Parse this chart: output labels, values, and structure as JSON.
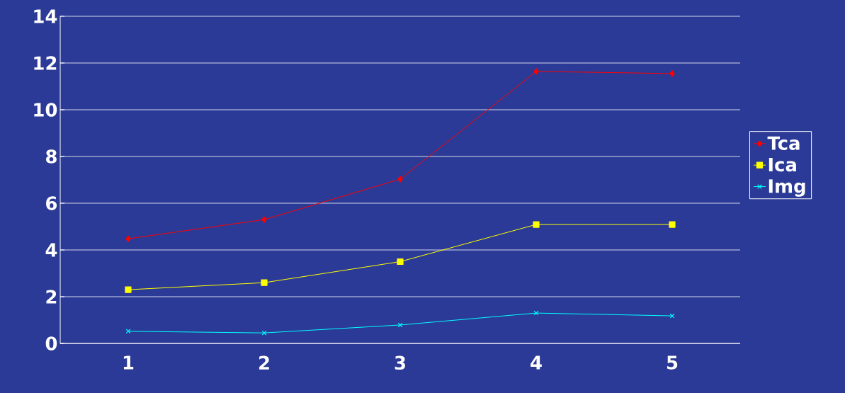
{
  "chart_data": {
    "type": "line",
    "categories": [
      "1",
      "2",
      "3",
      "4",
      "5"
    ],
    "series": [
      {
        "name": "Tca",
        "color": "#ff0000",
        "marker": "diamond",
        "values": [
          4.48,
          5.3,
          7.03,
          11.64,
          11.55
        ]
      },
      {
        "name": "Ica",
        "color": "#ffff00",
        "marker": "square",
        "values": [
          2.3,
          2.6,
          3.5,
          5.09,
          5.09
        ]
      },
      {
        "name": "Img",
        "color": "#00ffff",
        "marker": "cross",
        "values": [
          0.52,
          0.45,
          0.79,
          1.3,
          1.18
        ]
      }
    ],
    "ylim": [
      0,
      14
    ],
    "yticks": [
      0,
      2,
      4,
      6,
      8,
      10,
      12,
      14
    ],
    "grid": "y",
    "legend": "right"
  }
}
